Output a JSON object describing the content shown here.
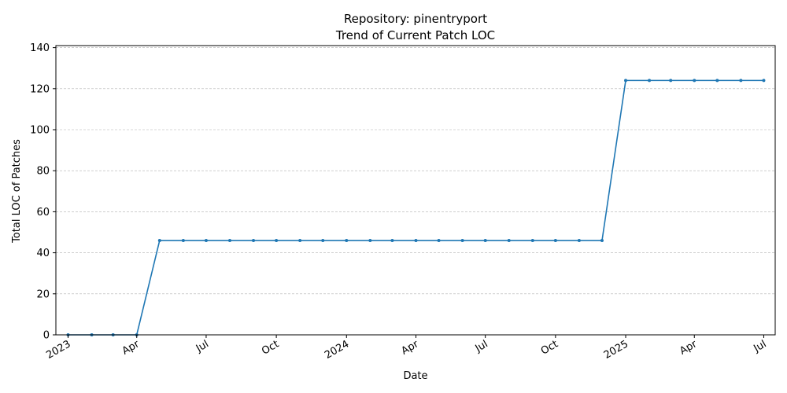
{
  "chart_data": {
    "type": "line",
    "title": "Repository: pinentryport",
    "subtitle": "Trend of Current Patch LOC",
    "xlabel": "Date",
    "ylabel": "Total LOC of Patches",
    "ylim": [
      0,
      141
    ],
    "yticks": [
      0,
      20,
      40,
      60,
      80,
      100,
      120,
      140
    ],
    "xlim": [
      "2022-12-16",
      "2025-07-16"
    ],
    "xticks": [
      {
        "date": "2023-01-01",
        "label": "2023"
      },
      {
        "date": "2023-04-01",
        "label": "Apr"
      },
      {
        "date": "2023-07-01",
        "label": "Jul"
      },
      {
        "date": "2023-10-01",
        "label": "Oct"
      },
      {
        "date": "2024-01-01",
        "label": "2024"
      },
      {
        "date": "2024-04-01",
        "label": "Apr"
      },
      {
        "date": "2024-07-01",
        "label": "Jul"
      },
      {
        "date": "2024-10-01",
        "label": "Oct"
      },
      {
        "date": "2025-01-01",
        "label": "2025"
      },
      {
        "date": "2025-04-01",
        "label": "Apr"
      },
      {
        "date": "2025-07-01",
        "label": "Jul"
      }
    ],
    "grid": "y-dashed",
    "color": "#1f77b4",
    "series": [
      {
        "x": [
          "2023-01-01",
          "2023-02-01",
          "2023-03-01",
          "2023-04-01",
          "2023-05-01",
          "2023-06-01",
          "2023-07-01",
          "2023-08-01",
          "2023-09-01",
          "2023-10-01",
          "2023-11-01",
          "2023-12-01",
          "2024-01-01",
          "2024-02-01",
          "2024-03-01",
          "2024-04-01",
          "2024-05-01",
          "2024-06-01",
          "2024-07-01",
          "2024-08-01",
          "2024-09-01",
          "2024-10-01",
          "2024-11-01",
          "2024-12-01",
          "2025-01-01",
          "2025-02-01",
          "2025-03-01",
          "2025-04-01",
          "2025-05-01",
          "2025-06-01",
          "2025-07-01"
        ],
        "values": [
          0,
          0,
          0,
          0,
          46,
          46,
          46,
          46,
          46,
          46,
          46,
          46,
          46,
          46,
          46,
          46,
          46,
          46,
          46,
          46,
          46,
          46,
          46,
          46,
          124,
          124,
          124,
          124,
          124,
          124,
          124
        ]
      }
    ]
  }
}
